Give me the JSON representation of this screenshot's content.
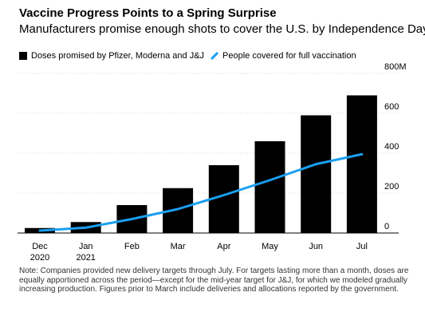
{
  "header": {
    "title": "Vaccine Progress Points to a Spring Surprise",
    "subtitle": "Manufacturers promise enough shots to cover the U.S. by Independence Day"
  },
  "legend": {
    "bars_label": "Doses promised by Pfizer, Moderna and J&J",
    "line_label": "People covered for full vaccination"
  },
  "colors": {
    "bars": "#000000",
    "line": "#1a9ff0",
    "grid": "#cccccc"
  },
  "note": "Note: Companies provided new delivery targets through July. For targets lasting more than a month, doses are equally apportioned across the period—except for the mid-year target for J&J, for which we modeled gradually increasing production. Figures prior to March include deliveries and allocations reported by the government.",
  "chart_data": {
    "type": "bar",
    "categories": [
      "Dec\n2020",
      "Jan\n2021",
      "Feb",
      "Mar",
      "Apr",
      "May",
      "Jun",
      "Jul"
    ],
    "series": [
      {
        "name": "Doses promised by Pfizer, Moderna and J&J",
        "type": "bar",
        "values": [
          25,
          55,
          140,
          225,
          340,
          460,
          590,
          690
        ]
      },
      {
        "name": "People covered for full vaccination",
        "type": "line",
        "values": [
          12,
          27,
          70,
          120,
          190,
          265,
          345,
          395
        ]
      }
    ],
    "ylim": [
      0,
      800
    ],
    "yticks": [
      0,
      200,
      400,
      600,
      800
    ],
    "ytick_labels": [
      "0",
      "200",
      "400",
      "600",
      "800M"
    ],
    "grid": true,
    "legend_position": "top-left"
  }
}
